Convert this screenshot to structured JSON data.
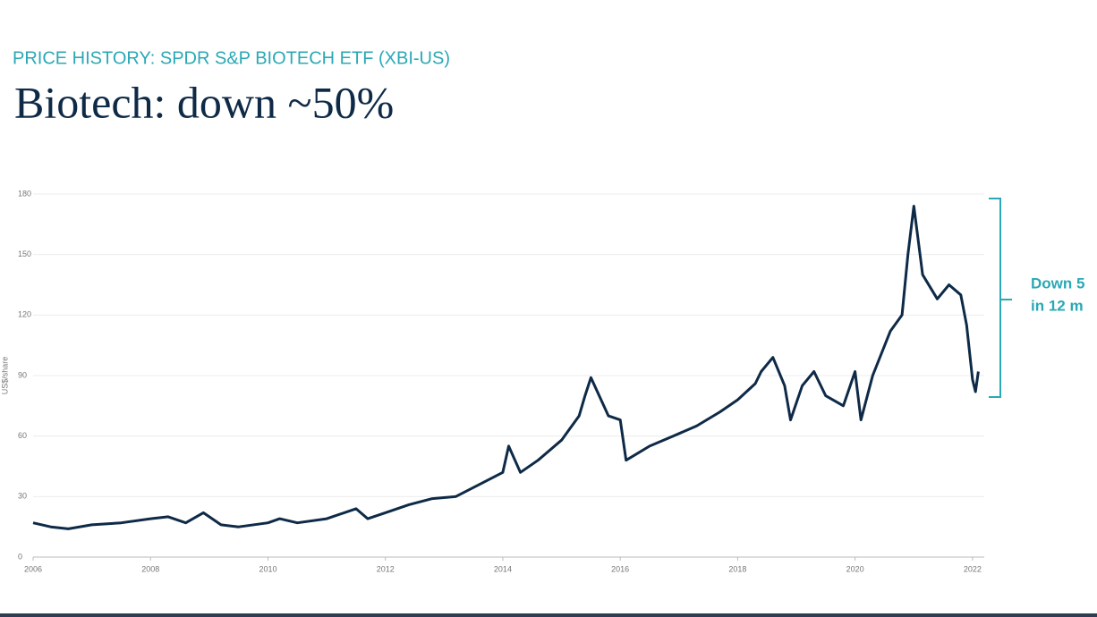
{
  "chart_data": {
    "type": "line",
    "subtitle": "PRICE HISTORY: SPDR S&P BIOTECH ETF (XBI-US)",
    "title": "Biotech: down ~50%",
    "ylabel": "US$/share",
    "annotation": [
      "Down 5",
      "in 12 m"
    ],
    "x": [
      2006.0,
      2006.3,
      2006.6,
      2007.0,
      2007.5,
      2008.0,
      2008.3,
      2008.6,
      2008.9,
      2009.2,
      2009.5,
      2010.0,
      2010.2,
      2010.5,
      2011.0,
      2011.5,
      2011.7,
      2012.0,
      2012.4,
      2012.8,
      2013.2,
      2013.6,
      2014.0,
      2014.1,
      2014.3,
      2014.6,
      2015.0,
      2015.3,
      2015.4,
      2015.5,
      2015.8,
      2016.0,
      2016.1,
      2016.5,
      2016.9,
      2017.3,
      2017.7,
      2018.0,
      2018.3,
      2018.4,
      2018.6,
      2018.8,
      2018.9,
      2019.1,
      2019.3,
      2019.5,
      2019.8,
      2020.0,
      2020.1,
      2020.3,
      2020.6,
      2020.8,
      2020.9,
      2021.0,
      2021.15,
      2021.4,
      2021.6,
      2021.8,
      2021.9,
      2022.0,
      2022.05,
      2022.1
    ],
    "series": [
      {
        "name": "XBI-US",
        "color": "#0e2a47",
        "values": [
          17,
          15,
          14,
          16,
          17,
          19,
          20,
          17,
          22,
          16,
          15,
          17,
          19,
          17,
          19,
          24,
          19,
          22,
          26,
          29,
          30,
          36,
          42,
          55,
          42,
          48,
          58,
          70,
          80,
          89,
          70,
          68,
          48,
          55,
          60,
          65,
          72,
          78,
          86,
          92,
          99,
          85,
          68,
          85,
          92,
          80,
          75,
          92,
          68,
          90,
          112,
          120,
          150,
          174,
          140,
          128,
          135,
          130,
          115,
          88,
          82,
          92
        ]
      }
    ],
    "xlim": [
      2006,
      2022.2
    ],
    "xticks": [
      2006,
      2008,
      2010,
      2012,
      2014,
      2016,
      2018,
      2020,
      2022
    ],
    "ylim": [
      0,
      180
    ],
    "yticks": [
      0,
      30,
      60,
      90,
      120,
      150,
      180
    ],
    "grid": true
  }
}
